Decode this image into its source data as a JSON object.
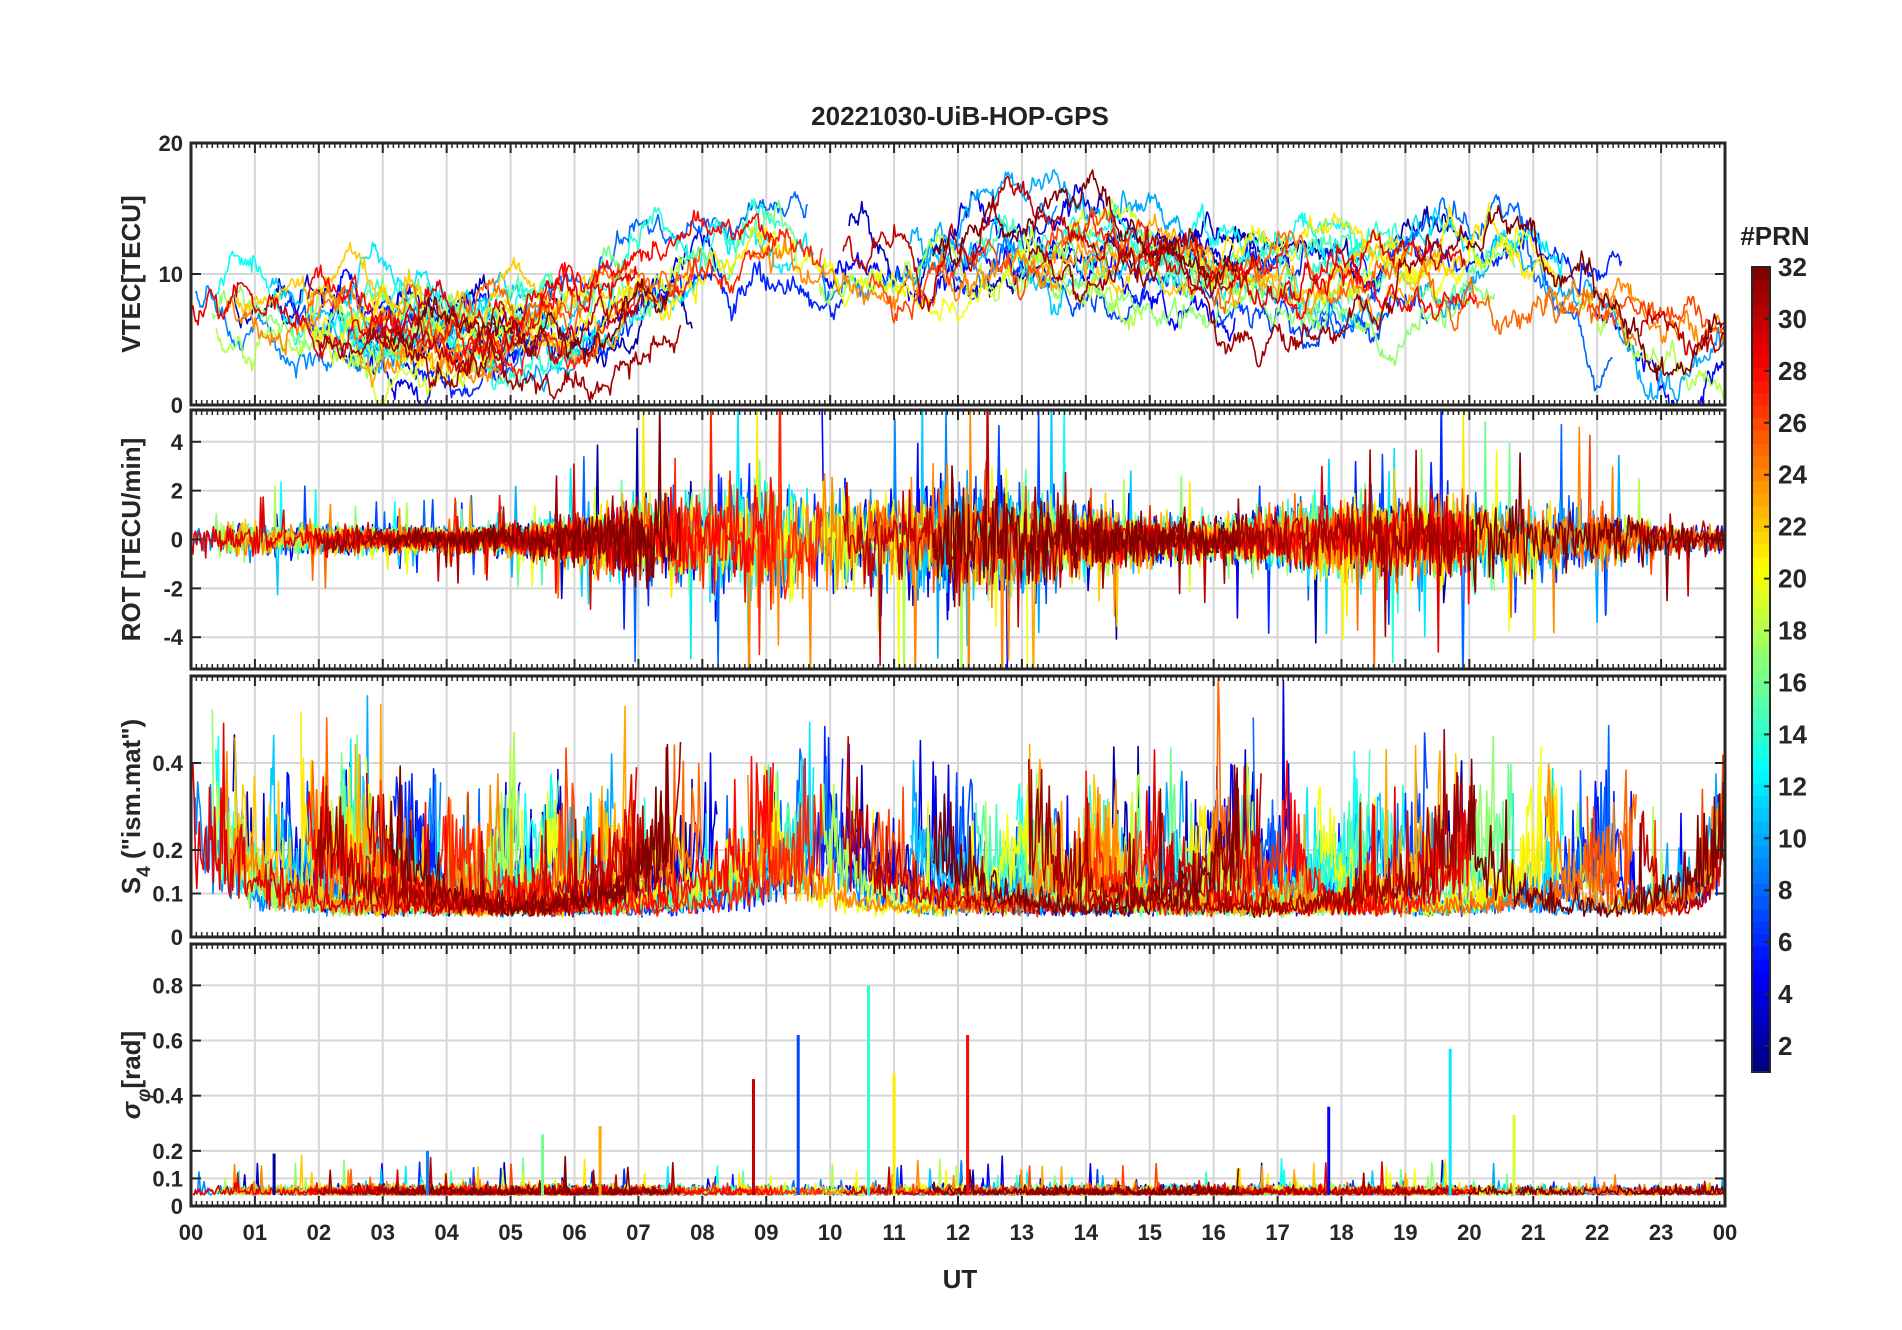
{
  "title": "20221030-UiB-HOP-GPS",
  "x_axis": {
    "label": "UT",
    "range": [
      0,
      24
    ],
    "tick_labels": [
      "00",
      "01",
      "02",
      "03",
      "04",
      "05",
      "06",
      "07",
      "08",
      "09",
      "10",
      "11",
      "12",
      "13",
      "14",
      "15",
      "16",
      "17",
      "18",
      "19",
      "20",
      "21",
      "22",
      "23",
      "00"
    ]
  },
  "colorbar": {
    "label": "#PRN",
    "range": [
      1,
      32
    ],
    "tick_values": [
      2,
      4,
      6,
      8,
      10,
      12,
      14,
      16,
      18,
      20,
      22,
      24,
      26,
      28,
      30,
      32
    ],
    "tick_labels": [
      "2",
      "4",
      "6",
      "8",
      "10",
      "12",
      "14",
      "16",
      "18",
      "20",
      "22",
      "24",
      "26",
      "28",
      "30",
      "32"
    ],
    "colormap": "jet"
  },
  "chart_data": [
    {
      "type": "line",
      "id": "vtec",
      "ylabel": "VTEC[TECU]",
      "ylim": [
        0,
        20
      ],
      "y_ticks": [
        0,
        10,
        20
      ],
      "y_tick_labels": [
        "0",
        "10",
        "20"
      ],
      "grid": true,
      "series_note": "one trace per visible GPS PRN, coloured by PRN",
      "envelope_mean": {
        "x": [
          0,
          1,
          2,
          3,
          4,
          5,
          6,
          7,
          8,
          9,
          10,
          11,
          12,
          13,
          14,
          15,
          16,
          17,
          18,
          19,
          20,
          21,
          22,
          23,
          24
        ],
        "values": [
          7.5,
          6.8,
          6.2,
          5.6,
          5.4,
          5.6,
          6.8,
          9.8,
          12.0,
          12.6,
          11.4,
          11.0,
          11.2,
          11.6,
          11.8,
          11.0,
          9.4,
          9.8,
          10.2,
          10.6,
          11.2,
          10.4,
          7.6,
          5.4,
          5.2
        ]
      }
    },
    {
      "type": "line",
      "id": "rot",
      "ylabel": "ROT [TECU/min]",
      "ylim": [
        -5.3,
        5.3
      ],
      "y_ticks": [
        -4,
        -2,
        0,
        2,
        4
      ],
      "y_tick_labels": [
        "-4",
        "-2",
        "0",
        "2",
        "4"
      ],
      "grid": true,
      "series_note": "rate of TEC per PRN",
      "activity_level": {
        "x": [
          0,
          1,
          2,
          3,
          4,
          5,
          6,
          7,
          8,
          9,
          10,
          11,
          12,
          13,
          14,
          15,
          16,
          17,
          18,
          19,
          20,
          21,
          22,
          23,
          24
        ],
        "values": [
          0.6,
          0.6,
          0.5,
          0.4,
          0.4,
          0.5,
          0.8,
          1.4,
          1.8,
          2.0,
          1.8,
          1.7,
          1.9,
          1.7,
          1.2,
          0.8,
          0.7,
          1.0,
          1.3,
          1.4,
          1.5,
          1.3,
          1.0,
          0.6,
          0.5
        ]
      }
    },
    {
      "type": "line",
      "id": "s4",
      "ylabel": "S_4 (\"ism.mat\")",
      "ylabel_parts": {
        "base": "S",
        "sub": "4",
        "rest": " (\"ism.mat\")"
      },
      "ylim": [
        0,
        0.6
      ],
      "y_ticks": [
        0,
        0.1,
        0.2,
        0.4
      ],
      "y_tick_labels": [
        "0",
        "0.1",
        "0.2",
        "0.4"
      ],
      "grid": true,
      "series_note": "amplitude scintillation index per PRN",
      "baseline": 0.04,
      "peaks_max": 0.6
    },
    {
      "type": "line",
      "id": "sigma_phi",
      "ylabel": "σ_φ[rad]",
      "ylabel_parts": {
        "base": "σ",
        "sub": "φ",
        "rest": "[rad]"
      },
      "ylim": [
        0,
        0.95
      ],
      "y_ticks": [
        0,
        0.1,
        0.2,
        0.4,
        0.6,
        0.8
      ],
      "y_tick_labels": [
        "0",
        "0.1",
        "0.2",
        "0.4",
        "0.6",
        "0.8"
      ],
      "grid": true,
      "series_note": "phase scintillation index per PRN",
      "baseline": 0.04,
      "notable_peaks": [
        {
          "ut": 1.3,
          "value": 0.19
        },
        {
          "ut": 3.7,
          "value": 0.2
        },
        {
          "ut": 5.5,
          "value": 0.26
        },
        {
          "ut": 6.4,
          "value": 0.29
        },
        {
          "ut": 8.8,
          "value": 0.46
        },
        {
          "ut": 9.5,
          "value": 0.62
        },
        {
          "ut": 10.6,
          "value": 0.8
        },
        {
          "ut": 11.0,
          "value": 0.48
        },
        {
          "ut": 12.15,
          "value": 0.62
        },
        {
          "ut": 17.8,
          "value": 0.36
        },
        {
          "ut": 19.7,
          "value": 0.57
        },
        {
          "ut": 20.7,
          "value": 0.33
        }
      ]
    }
  ]
}
